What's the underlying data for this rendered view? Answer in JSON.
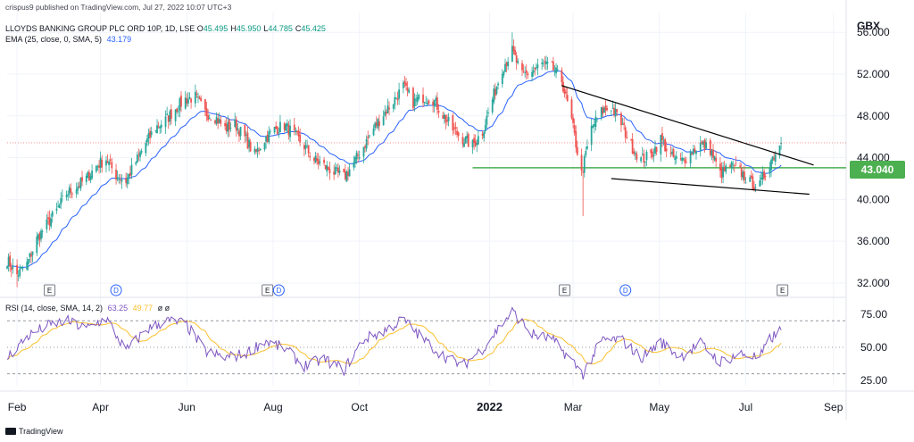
{
  "header": {
    "published": "crispus9 published on TradingView.com, Jul 27, 2022 10:07 UTC+3",
    "symbol": "LLOYDS BANKING GROUP PLC ORD 10P, 1D, LSE",
    "ohlc": [
      {
        "k": "O",
        "v": "45.495"
      },
      {
        "k": "H",
        "v": "45.950"
      },
      {
        "k": "L",
        "v": "44.785"
      },
      {
        "k": "C",
        "v": "45.425"
      }
    ],
    "ema_label": "EMA (25, close, 0, SMA, 5)",
    "ema_value": "43.179",
    "rsi_label": "RSI (14, close, SMA, 14, 2)",
    "rsi_value": "63.25",
    "rsi_ma_value": "49.77",
    "rsi_extra": "ø  ø"
  },
  "currency": "GBX",
  "price_badge": "43.040",
  "branding": "TradingView",
  "colors": {
    "up": "#26a69a",
    "down": "#ef5350",
    "ema": "#2962ff",
    "support": "#4caf50",
    "trendline": "#000000",
    "rsi": "#7e57c2",
    "rsi_ma": "#fbc02d"
  },
  "chart_data": {
    "type": "candlestick",
    "price_axis": {
      "ticks": [
        "56.000",
        "52.000",
        "48.000",
        "44.000",
        "40.000",
        "36.000",
        "32.000"
      ],
      "range": [
        30.8,
        57.9
      ]
    },
    "rsi_axis": {
      "ticks": [
        "75.00",
        "50.00",
        "25.00"
      ],
      "bands": [
        70,
        50,
        30
      ],
      "range": [
        21,
        83
      ]
    },
    "time_axis": [
      {
        "label": "Feb",
        "date": "2021-02-01",
        "bold": false
      },
      {
        "label": "Apr",
        "date": "2021-04-01",
        "bold": false
      },
      {
        "label": "Jun",
        "date": "2021-06-01",
        "bold": false
      },
      {
        "label": "Aug",
        "date": "2021-08-01",
        "bold": false
      },
      {
        "label": "Oct",
        "date": "2021-10-01",
        "bold": false
      },
      {
        "label": "2022",
        "date": "2022-01-01",
        "bold": true
      },
      {
        "label": "Mar",
        "date": "2022-03-01",
        "bold": false
      },
      {
        "label": "May",
        "date": "2022-05-01",
        "bold": false
      },
      {
        "label": "Jul",
        "date": "2022-07-01",
        "bold": false
      },
      {
        "label": "Sep",
        "date": "2022-09-01",
        "bold": false
      }
    ],
    "start_date": "2021-01-25",
    "end_date": "2022-09-10",
    "last_date": "2022-07-26",
    "last_close": 45.425,
    "support_level": 43.04,
    "support_start": "2021-12-20",
    "trendlines": [
      {
        "from": {
          "date": "2022-02-21",
          "price": 50.9
        },
        "to": {
          "date": "2022-08-18",
          "price": 43.3
        }
      },
      {
        "from": {
          "date": "2022-03-28",
          "price": 42.0
        },
        "to": {
          "date": "2022-08-15",
          "price": 40.5
        }
      }
    ],
    "price_path": [
      [
        "2021-01-25",
        34.2
      ],
      [
        "2021-02-01",
        32.8
      ],
      [
        "2021-02-08",
        33.8
      ],
      [
        "2021-02-15",
        36.2
      ],
      [
        "2021-02-22",
        37.6
      ],
      [
        "2021-03-01",
        38.9
      ],
      [
        "2021-03-08",
        40.6
      ],
      [
        "2021-03-15",
        41.2
      ],
      [
        "2021-03-22",
        42.0
      ],
      [
        "2021-03-29",
        43.2
      ],
      [
        "2021-04-05",
        43.9
      ],
      [
        "2021-04-12",
        42.3
      ],
      [
        "2021-04-19",
        41.8
      ],
      [
        "2021-04-26",
        43.6
      ],
      [
        "2021-05-03",
        45.4
      ],
      [
        "2021-05-10",
        46.9
      ],
      [
        "2021-05-17",
        47.6
      ],
      [
        "2021-05-24",
        48.7
      ],
      [
        "2021-05-31",
        49.6
      ],
      [
        "2021-06-07",
        49.8
      ],
      [
        "2021-06-14",
        48.3
      ],
      [
        "2021-06-21",
        47.9
      ],
      [
        "2021-06-28",
        46.8
      ],
      [
        "2021-07-05",
        47.2
      ],
      [
        "2021-07-12",
        45.9
      ],
      [
        "2021-07-19",
        44.3
      ],
      [
        "2021-07-26",
        45.8
      ],
      [
        "2021-08-02",
        46.7
      ],
      [
        "2021-08-09",
        47.1
      ],
      [
        "2021-08-16",
        46.2
      ],
      [
        "2021-08-23",
        45.1
      ],
      [
        "2021-08-30",
        43.8
      ],
      [
        "2021-09-06",
        43.2
      ],
      [
        "2021-09-13",
        42.6
      ],
      [
        "2021-09-20",
        42.1
      ],
      [
        "2021-09-27",
        43.5
      ],
      [
        "2021-10-04",
        45.1
      ],
      [
        "2021-10-11",
        46.8
      ],
      [
        "2021-10-18",
        48.2
      ],
      [
        "2021-10-25",
        49.4
      ],
      [
        "2021-11-01",
        50.8
      ],
      [
        "2021-11-08",
        49.3
      ],
      [
        "2021-11-15",
        49.8
      ],
      [
        "2021-11-22",
        49.6
      ],
      [
        "2021-11-29",
        48.1
      ],
      [
        "2021-12-06",
        46.7
      ],
      [
        "2021-12-13",
        45.8
      ],
      [
        "2021-12-20",
        45.2
      ],
      [
        "2021-12-27",
        46.5
      ],
      [
        "2022-01-03",
        49.6
      ],
      [
        "2022-01-10",
        52.6
      ],
      [
        "2022-01-17",
        54.2
      ],
      [
        "2022-01-24",
        51.8
      ],
      [
        "2022-01-31",
        52.3
      ],
      [
        "2022-02-07",
        52.9
      ],
      [
        "2022-02-14",
        52.6
      ],
      [
        "2022-02-21",
        51.4
      ],
      [
        "2022-02-28",
        47.5
      ],
      [
        "2022-03-07",
        42.4
      ],
      [
        "2022-03-14",
        46.8
      ],
      [
        "2022-03-21",
        48.4
      ],
      [
        "2022-03-28",
        48.9
      ],
      [
        "2022-04-04",
        47.3
      ],
      [
        "2022-04-11",
        45.2
      ],
      [
        "2022-04-18",
        43.8
      ],
      [
        "2022-04-25",
        44.2
      ],
      [
        "2022-05-02",
        45.8
      ],
      [
        "2022-05-09",
        44.1
      ],
      [
        "2022-05-16",
        43.6
      ],
      [
        "2022-05-23",
        44.5
      ],
      [
        "2022-05-30",
        45.3
      ],
      [
        "2022-06-06",
        44.8
      ],
      [
        "2022-06-13",
        42.4
      ],
      [
        "2022-06-20",
        43.2
      ],
      [
        "2022-06-27",
        42.7
      ],
      [
        "2022-07-04",
        41.6
      ],
      [
        "2022-07-11",
        41.3
      ],
      [
        "2022-07-18",
        43.6
      ],
      [
        "2022-07-26",
        45.4
      ]
    ],
    "extremes": [
      {
        "date": "2021-02-01",
        "price": 31.6
      },
      {
        "date": "2022-01-17",
        "price": 56.0
      },
      {
        "date": "2022-03-08",
        "price": 38.4
      }
    ],
    "rsi_path": [
      [
        "2021-01-25",
        42
      ],
      [
        "2021-02-08",
        58
      ],
      [
        "2021-02-22",
        66
      ],
      [
        "2021-03-08",
        70
      ],
      [
        "2021-03-22",
        64
      ],
      [
        "2021-04-05",
        72
      ],
      [
        "2021-04-19",
        47
      ],
      [
        "2021-05-03",
        63
      ],
      [
        "2021-05-17",
        70
      ],
      [
        "2021-05-31",
        68
      ],
      [
        "2021-06-14",
        47
      ],
      [
        "2021-06-28",
        42
      ],
      [
        "2021-07-12",
        45
      ],
      [
        "2021-07-26",
        55
      ],
      [
        "2021-08-09",
        49
      ],
      [
        "2021-08-23",
        36
      ],
      [
        "2021-09-06",
        41
      ],
      [
        "2021-09-20",
        33
      ],
      [
        "2021-10-04",
        56
      ],
      [
        "2021-10-18",
        62
      ],
      [
        "2021-11-01",
        71
      ],
      [
        "2021-11-15",
        56
      ],
      [
        "2021-11-29",
        44
      ],
      [
        "2021-12-13",
        36
      ],
      [
        "2021-12-27",
        49
      ],
      [
        "2022-01-10",
        68
      ],
      [
        "2022-01-17",
        77
      ],
      [
        "2022-01-31",
        60
      ],
      [
        "2022-02-14",
        56
      ],
      [
        "2022-02-28",
        40
      ],
      [
        "2022-03-08",
        30
      ],
      [
        "2022-03-21",
        55
      ],
      [
        "2022-04-04",
        56
      ],
      [
        "2022-04-18",
        42
      ],
      [
        "2022-05-02",
        54
      ],
      [
        "2022-05-16",
        43
      ],
      [
        "2022-05-30",
        53
      ],
      [
        "2022-06-13",
        39
      ],
      [
        "2022-06-27",
        45
      ],
      [
        "2022-07-11",
        42
      ],
      [
        "2022-07-18",
        56
      ],
      [
        "2022-07-26",
        63
      ]
    ],
    "events": [
      {
        "type": "E",
        "date": "2021-02-24"
      },
      {
        "type": "D",
        "date": "2021-04-12"
      },
      {
        "type": "E",
        "date": "2021-07-28"
      },
      {
        "type": "D",
        "date": "2021-08-05"
      },
      {
        "type": "E",
        "date": "2022-02-23"
      },
      {
        "type": "D",
        "date": "2022-04-07"
      },
      {
        "type": "E",
        "date": "2022-07-27"
      }
    ]
  }
}
